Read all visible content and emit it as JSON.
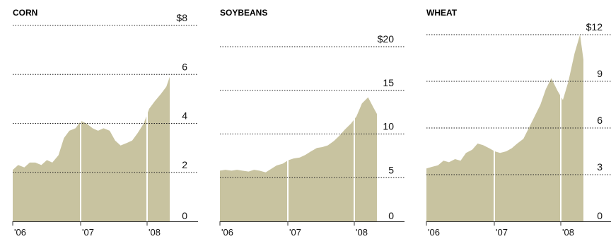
{
  "colors": {
    "area": "#c8c3a0",
    "grid": "#222222",
    "divider": "#ffffff",
    "axis": "#333333"
  },
  "chart_data": [
    {
      "type": "area",
      "title": "CORN",
      "x_ticks": [
        "'06",
        "'07",
        "'08"
      ],
      "y_ticks": [
        "0",
        "2",
        "4",
        "6",
        "$8"
      ],
      "ylim": [
        0,
        8
      ],
      "grid": "dotted horizontal",
      "x": [
        2006.0,
        2006.08,
        2006.17,
        2006.25,
        2006.33,
        2006.42,
        2006.5,
        2006.58,
        2006.67,
        2006.75,
        2006.83,
        2006.92,
        2007.0,
        2007.08,
        2007.17,
        2007.25,
        2007.33,
        2007.42,
        2007.5,
        2007.58,
        2007.67,
        2007.75,
        2007.83,
        2007.92,
        2008.0,
        2008.08,
        2008.17,
        2008.25,
        2008.3
      ],
      "values": [
        2.1,
        2.3,
        2.2,
        2.4,
        2.4,
        2.3,
        2.5,
        2.4,
        2.7,
        3.4,
        3.7,
        3.8,
        4.1,
        4.0,
        3.8,
        3.7,
        3.8,
        3.7,
        3.3,
        3.1,
        3.2,
        3.3,
        3.6,
        4.0,
        4.6,
        4.9,
        5.2,
        5.5,
        5.9
      ]
    },
    {
      "type": "area",
      "title": "SOYBEANS",
      "x_ticks": [
        "'06",
        "'07",
        "'08"
      ],
      "y_ticks": [
        "0",
        "5",
        "10",
        "15",
        "$20"
      ],
      "ylim": [
        0,
        20
      ],
      "grid": "dotted horizontal",
      "x": [
        2006.0,
        2006.08,
        2006.17,
        2006.25,
        2006.33,
        2006.42,
        2006.5,
        2006.58,
        2006.67,
        2006.75,
        2006.83,
        2006.92,
        2007.0,
        2007.08,
        2007.17,
        2007.25,
        2007.33,
        2007.42,
        2007.5,
        2007.58,
        2007.67,
        2007.75,
        2007.83,
        2007.92,
        2008.0,
        2008.08,
        2008.17,
        2008.25,
        2008.3
      ],
      "values": [
        5.8,
        5.9,
        5.8,
        5.9,
        5.8,
        5.7,
        5.9,
        5.8,
        5.6,
        6.0,
        6.4,
        6.6,
        7.0,
        7.2,
        7.3,
        7.6,
        8.0,
        8.4,
        8.5,
        8.7,
        9.2,
        9.8,
        10.5,
        11.2,
        12.0,
        13.5,
        14.2,
        13.0,
        12.3
      ]
    },
    {
      "type": "area",
      "title": "WHEAT",
      "x_ticks": [
        "'06",
        "'07",
        "'08"
      ],
      "y_ticks": [
        "0",
        "3",
        "6",
        "9",
        "$12"
      ],
      "ylim": [
        0,
        12
      ],
      "grid": "dotted horizontal",
      "x": [
        2006.0,
        2006.08,
        2006.17,
        2006.25,
        2006.33,
        2006.42,
        2006.5,
        2006.58,
        2006.67,
        2006.75,
        2006.83,
        2006.92,
        2007.0,
        2007.08,
        2007.17,
        2007.25,
        2007.33,
        2007.42,
        2007.5,
        2007.58,
        2007.67,
        2007.75,
        2007.83,
        2007.92,
        2008.0,
        2008.08,
        2008.17,
        2008.25,
        2008.3
      ],
      "values": [
        3.4,
        3.5,
        3.6,
        3.9,
        3.8,
        4.0,
        3.9,
        4.4,
        4.6,
        5.0,
        4.9,
        4.7,
        4.5,
        4.4,
        4.5,
        4.7,
        5.0,
        5.3,
        6.0,
        6.7,
        7.5,
        8.5,
        9.2,
        8.4,
        7.8,
        9.0,
        10.8,
        12.0,
        10.4
      ]
    }
  ]
}
